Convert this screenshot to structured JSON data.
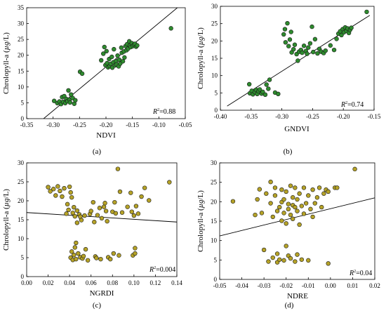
{
  "figure_title": "",
  "chart_data": [
    {
      "type": "scatter",
      "panel_label": "(a)",
      "xlabel": "NDVI",
      "ylabel_pre": "Chrolopyll-a (",
      "ylabel_unit": "µg",
      "ylabel_post": "/L)",
      "r2_pre": "R",
      "r2_sup": "2",
      "r2_post": "=0.88",
      "xlim": [
        -0.35,
        -0.05
      ],
      "ylim": [
        0,
        35
      ],
      "x_ticks": [
        -0.35,
        -0.3,
        -0.25,
        -0.2,
        -0.15,
        -0.1,
        -0.05
      ],
      "x_tick_labels": [
        "-0.35",
        "-0.30",
        "-0.25",
        "-0.20",
        "-0.15",
        "-0.10",
        "-0.05"
      ],
      "y_ticks": [
        0,
        5,
        10,
        15,
        20,
        25,
        30,
        35
      ],
      "y_tick_labels": [
        "0",
        "5",
        "10",
        "15",
        "20",
        "25",
        "30",
        "35"
      ],
      "point_color": "#2e8b2e",
      "fit_line": [
        [
          -0.318,
          0
        ],
        [
          -0.065,
          35
        ]
      ],
      "points": [
        [
          -0.298,
          5.6
        ],
        [
          -0.292,
          4.9
        ],
        [
          -0.288,
          5.4
        ],
        [
          -0.285,
          4.6
        ],
        [
          -0.283,
          6.8
        ],
        [
          -0.281,
          5.3
        ],
        [
          -0.279,
          7.1
        ],
        [
          -0.277,
          4.9
        ],
        [
          -0.275,
          6.2
        ],
        [
          -0.273,
          5.5
        ],
        [
          -0.271,
          8.9
        ],
        [
          -0.269,
          6.0
        ],
        [
          -0.268,
          5.1
        ],
        [
          -0.266,
          7.6
        ],
        [
          -0.263,
          6.5
        ],
        [
          -0.26,
          4.7
        ],
        [
          -0.258,
          5.8
        ],
        [
          -0.249,
          14.8
        ],
        [
          -0.245,
          14.2
        ],
        [
          -0.209,
          18.4
        ],
        [
          -0.205,
          20.5
        ],
        [
          -0.203,
          22.6
        ],
        [
          -0.201,
          16.9
        ],
        [
          -0.199,
          21.3
        ],
        [
          -0.198,
          17.5
        ],
        [
          -0.196,
          16.2
        ],
        [
          -0.194,
          18.8
        ],
        [
          -0.193,
          16.6
        ],
        [
          -0.191,
          17.3
        ],
        [
          -0.189,
          19.5
        ],
        [
          -0.188,
          16.1
        ],
        [
          -0.186,
          17.8
        ],
        [
          -0.185,
          21.9
        ],
        [
          -0.183,
          16.8
        ],
        [
          -0.181,
          18.2
        ],
        [
          -0.18,
          17.1
        ],
        [
          -0.178,
          19.9
        ],
        [
          -0.176,
          16.5
        ],
        [
          -0.175,
          18.6
        ],
        [
          -0.173,
          17.4
        ],
        [
          -0.171,
          22.4
        ],
        [
          -0.17,
          20.8
        ],
        [
          -0.168,
          18.1
        ],
        [
          -0.166,
          21.2
        ],
        [
          -0.165,
          19.3
        ],
        [
          -0.163,
          22.9
        ],
        [
          -0.161,
          21.6
        ],
        [
          -0.16,
          23.5
        ],
        [
          -0.158,
          22.1
        ],
        [
          -0.156,
          24.4
        ],
        [
          -0.155,
          23.0
        ],
        [
          -0.153,
          22.6
        ],
        [
          -0.151,
          23.8
        ],
        [
          -0.149,
          22.9
        ],
        [
          -0.147,
          23.3
        ],
        [
          -0.145,
          23.6
        ],
        [
          -0.143,
          22.7
        ],
        [
          -0.141,
          23.1
        ],
        [
          -0.077,
          28.5
        ]
      ]
    },
    {
      "type": "scatter",
      "panel_label": "(b)",
      "xlabel": "GNDVI",
      "ylabel_pre": "Chrolopyll-a (",
      "ylabel_unit": "µg",
      "ylabel_post": "/L)",
      "r2_pre": "R",
      "r2_sup": "2",
      "r2_post": "=0.74",
      "xlim": [
        -0.4,
        -0.15
      ],
      "ylim": [
        0,
        30
      ],
      "x_ticks": [
        -0.4,
        -0.35,
        -0.3,
        -0.25,
        -0.2,
        -0.15
      ],
      "x_tick_labels": [
        "-0.40",
        "-0.35",
        "-0.30",
        "-0.25",
        "-0.20",
        "-0.15"
      ],
      "y_ticks": [
        0,
        5,
        10,
        15,
        20,
        25,
        30
      ],
      "y_tick_labels": [
        "0",
        "5",
        "10",
        "15",
        "20",
        "25",
        "30"
      ],
      "point_color": "#2e8b2e",
      "fit_line": [
        [
          -0.389,
          1.2
        ],
        [
          -0.157,
          27.4
        ]
      ],
      "points": [
        [
          -0.353,
          7.5
        ],
        [
          -0.352,
          4.9
        ],
        [
          -0.349,
          5.6
        ],
        [
          -0.347,
          4.6
        ],
        [
          -0.344,
          5.2
        ],
        [
          -0.342,
          5.9
        ],
        [
          -0.34,
          4.7
        ],
        [
          -0.338,
          5.5
        ],
        [
          -0.336,
          6.0
        ],
        [
          -0.333,
          4.8
        ],
        [
          -0.331,
          5.3
        ],
        [
          -0.327,
          4.5
        ],
        [
          -0.325,
          7.4
        ],
        [
          -0.322,
          6.2
        ],
        [
          -0.32,
          8.8
        ],
        [
          -0.311,
          5.1
        ],
        [
          -0.306,
          4.7
        ],
        [
          -0.297,
          21.9
        ],
        [
          -0.295,
          23.4
        ],
        [
          -0.294,
          19.6
        ],
        [
          -0.291,
          25.1
        ],
        [
          -0.289,
          18.5
        ],
        [
          -0.287,
          20.4
        ],
        [
          -0.285,
          22.6
        ],
        [
          -0.284,
          16.7
        ],
        [
          -0.281,
          17.6
        ],
        [
          -0.279,
          18.9
        ],
        [
          -0.276,
          16.2
        ],
        [
          -0.274,
          14.3
        ],
        [
          -0.272,
          16.9
        ],
        [
          -0.269,
          17.4
        ],
        [
          -0.267,
          16.6
        ],
        [
          -0.264,
          18.6
        ],
        [
          -0.261,
          17.1
        ],
        [
          -0.259,
          16.3
        ],
        [
          -0.257,
          18.1
        ],
        [
          -0.254,
          19.3
        ],
        [
          -0.251,
          24.1
        ],
        [
          -0.249,
          16.8
        ],
        [
          -0.246,
          20.5
        ],
        [
          -0.242,
          16.4
        ],
        [
          -0.239,
          17.7
        ],
        [
          -0.236,
          16.9
        ],
        [
          -0.232,
          16.5
        ],
        [
          -0.229,
          17.2
        ],
        [
          -0.221,
          18.7
        ],
        [
          -0.215,
          17.4
        ],
        [
          -0.211,
          20.6
        ],
        [
          -0.208,
          22.1
        ],
        [
          -0.205,
          22.8
        ],
        [
          -0.203,
          21.7
        ],
        [
          -0.201,
          23.4
        ],
        [
          -0.199,
          22.5
        ],
        [
          -0.197,
          23.9
        ],
        [
          -0.195,
          22.9
        ],
        [
          -0.193,
          23.6
        ],
        [
          -0.191,
          22.3
        ],
        [
          -0.189,
          23.2
        ],
        [
          -0.187,
          23.8
        ],
        [
          -0.162,
          28.4
        ]
      ]
    },
    {
      "type": "scatter",
      "panel_label": "(c)",
      "xlabel": "NGRDI",
      "ylabel_pre": "Chrolopyll-a (",
      "ylabel_unit": "µg",
      "ylabel_post": "/L)",
      "r2_pre": "R",
      "r2_sup": "2",
      "r2_post": "=0.004",
      "xlim": [
        0.0,
        0.14
      ],
      "ylim": [
        0,
        30
      ],
      "x_ticks": [
        0.0,
        0.02,
        0.04,
        0.06,
        0.08,
        0.1,
        0.12,
        0.14
      ],
      "x_tick_labels": [
        "0.00",
        "0.02",
        "0.04",
        "0.06",
        "0.08",
        "0.10",
        "0.12",
        "0.14"
      ],
      "y_ticks": [
        0,
        5,
        10,
        15,
        20,
        25,
        30
      ],
      "y_tick_labels": [
        "0",
        "5",
        "10",
        "15",
        "20",
        "25",
        "30"
      ],
      "point_color": "#b5a227",
      "fit_line": [
        [
          0.0,
          16.9
        ],
        [
          0.14,
          14.4
        ]
      ],
      "points": [
        [
          0.02,
          23.6
        ],
        [
          0.022,
          22.5
        ],
        [
          0.025,
          23.1
        ],
        [
          0.027,
          21.4
        ],
        [
          0.029,
          23.8
        ],
        [
          0.031,
          22.6
        ],
        [
          0.033,
          21.1
        ],
        [
          0.035,
          23.3
        ],
        [
          0.037,
          16.6
        ],
        [
          0.038,
          19.1
        ],
        [
          0.039,
          17.6
        ],
        [
          0.04,
          23.7
        ],
        [
          0.041,
          22.2
        ],
        [
          0.041,
          5.0
        ],
        [
          0.042,
          20.9
        ],
        [
          0.042,
          6.6
        ],
        [
          0.043,
          4.4
        ],
        [
          0.043,
          16.8
        ],
        [
          0.044,
          18.3
        ],
        [
          0.044,
          5.7
        ],
        [
          0.045,
          15.9
        ],
        [
          0.045,
          7.7
        ],
        [
          0.046,
          4.6
        ],
        [
          0.046,
          8.9
        ],
        [
          0.047,
          17.4
        ],
        [
          0.047,
          14.2
        ],
        [
          0.048,
          6.1
        ],
        [
          0.049,
          16.4
        ],
        [
          0.05,
          15.8
        ],
        [
          0.05,
          5.1
        ],
        [
          0.051,
          14.9
        ],
        [
          0.052,
          4.8
        ],
        [
          0.053,
          5.4
        ],
        [
          0.054,
          16.1
        ],
        [
          0.055,
          7.2
        ],
        [
          0.057,
          4.3
        ],
        [
          0.059,
          16.5
        ],
        [
          0.06,
          17.3
        ],
        [
          0.062,
          19.6
        ],
        [
          0.063,
          14.4
        ],
        [
          0.064,
          5.3
        ],
        [
          0.065,
          4.9
        ],
        [
          0.066,
          16.2
        ],
        [
          0.068,
          18.1
        ],
        [
          0.069,
          4.6
        ],
        [
          0.07,
          15.4
        ],
        [
          0.072,
          18.4
        ],
        [
          0.073,
          19.4
        ],
        [
          0.074,
          17.3
        ],
        [
          0.075,
          14.6
        ],
        [
          0.076,
          5.1
        ],
        [
          0.078,
          4.6
        ],
        [
          0.08,
          17.1
        ],
        [
          0.081,
          6.1
        ],
        [
          0.082,
          19.6
        ],
        [
          0.083,
          16.7
        ],
        [
          0.085,
          28.4
        ],
        [
          0.086,
          5.6
        ],
        [
          0.087,
          22.4
        ],
        [
          0.089,
          16.9
        ],
        [
          0.094,
          18.4
        ],
        [
          0.097,
          22.1
        ],
        [
          0.098,
          17.1
        ],
        [
          0.099,
          5.6
        ],
        [
          0.1,
          16.1
        ],
        [
          0.101,
          7.5
        ],
        [
          0.101,
          6.1
        ],
        [
          0.102,
          18.6
        ],
        [
          0.104,
          16.6
        ],
        [
          0.107,
          21.1
        ],
        [
          0.11,
          23.4
        ],
        [
          0.114,
          20.1
        ],
        [
          0.133,
          24.9
        ]
      ]
    },
    {
      "type": "scatter",
      "panel_label": "(d)",
      "xlabel": "NDRE",
      "ylabel_pre": "Chrolopyll-a (",
      "ylabel_unit": "µg",
      "ylabel_post": "/L)",
      "r2_pre": "R",
      "r2_sup": "2",
      "r2_post": "=0.04",
      "xlim": [
        -0.05,
        0.02
      ],
      "ylim": [
        0,
        30
      ],
      "x_ticks": [
        -0.05,
        -0.04,
        -0.03,
        -0.02,
        -0.01,
        0.0,
        0.01,
        0.02
      ],
      "x_tick_labels": [
        "-0.05",
        "-0.04",
        "-0.03",
        "-0.02",
        "-0.01",
        "0.00",
        "0.01",
        "0.02"
      ],
      "y_ticks": [
        0,
        5,
        10,
        15,
        20,
        25,
        30
      ],
      "y_tick_labels": [
        "0",
        "5",
        "10",
        "15",
        "20",
        "25",
        "30"
      ],
      "point_color": "#b5a227",
      "fit_line": [
        [
          -0.05,
          11.2
        ],
        [
          0.02,
          21.0
        ]
      ],
      "points": [
        [
          -0.044,
          20.1
        ],
        [
          -0.034,
          16.6
        ],
        [
          -0.033,
          20.6
        ],
        [
          -0.032,
          23.2
        ],
        [
          -0.031,
          17.1
        ],
        [
          -0.03,
          7.6
        ],
        [
          -0.029,
          22.1
        ],
        [
          -0.028,
          4.6
        ],
        [
          -0.027,
          25.1
        ],
        [
          -0.027,
          19.6
        ],
        [
          -0.026,
          16.1
        ],
        [
          -0.026,
          5.6
        ],
        [
          -0.025,
          23.6
        ],
        [
          -0.025,
          21.6
        ],
        [
          -0.024,
          17.6
        ],
        [
          -0.024,
          6.6
        ],
        [
          -0.024,
          4.4
        ],
        [
          -0.023,
          18.6
        ],
        [
          -0.023,
          5.1
        ],
        [
          -0.022,
          19.9
        ],
        [
          -0.022,
          15.1
        ],
        [
          -0.022,
          23.1
        ],
        [
          -0.021,
          4.9
        ],
        [
          -0.021,
          20.6
        ],
        [
          -0.021,
          17.1
        ],
        [
          -0.02,
          22.6
        ],
        [
          -0.02,
          8.6
        ],
        [
          -0.02,
          14.4
        ],
        [
          -0.019,
          19.4
        ],
        [
          -0.019,
          18.1
        ],
        [
          -0.019,
          6.1
        ],
        [
          -0.018,
          24.1
        ],
        [
          -0.018,
          16.6
        ],
        [
          -0.018,
          5.4
        ],
        [
          -0.017,
          21.1
        ],
        [
          -0.017,
          19.1
        ],
        [
          -0.017,
          15.6
        ],
        [
          -0.016,
          23.6
        ],
        [
          -0.016,
          18.6
        ],
        [
          -0.016,
          4.6
        ],
        [
          -0.015,
          20.6
        ],
        [
          -0.015,
          17.6
        ],
        [
          -0.015,
          6.4
        ],
        [
          -0.014,
          22.1
        ],
        [
          -0.014,
          14.1
        ],
        [
          -0.013,
          18.9
        ],
        [
          -0.013,
          5.1
        ],
        [
          -0.012,
          23.6
        ],
        [
          -0.012,
          16.9
        ],
        [
          -0.011,
          19.6
        ],
        [
          -0.01,
          21.6
        ],
        [
          -0.01,
          4.9
        ],
        [
          -0.009,
          18.1
        ],
        [
          -0.008,
          23.1
        ],
        [
          -0.008,
          16.1
        ],
        [
          -0.007,
          19.6
        ],
        [
          -0.006,
          21.1
        ],
        [
          -0.005,
          23.6
        ],
        [
          -0.004,
          18.6
        ],
        [
          -0.003,
          22.1
        ],
        [
          -0.002,
          23.1
        ],
        [
          -0.001,
          22.6
        ],
        [
          -0.001,
          4.1
        ],
        [
          0.002,
          23.6
        ],
        [
          0.003,
          23.6
        ],
        [
          0.011,
          28.4
        ]
      ]
    }
  ]
}
